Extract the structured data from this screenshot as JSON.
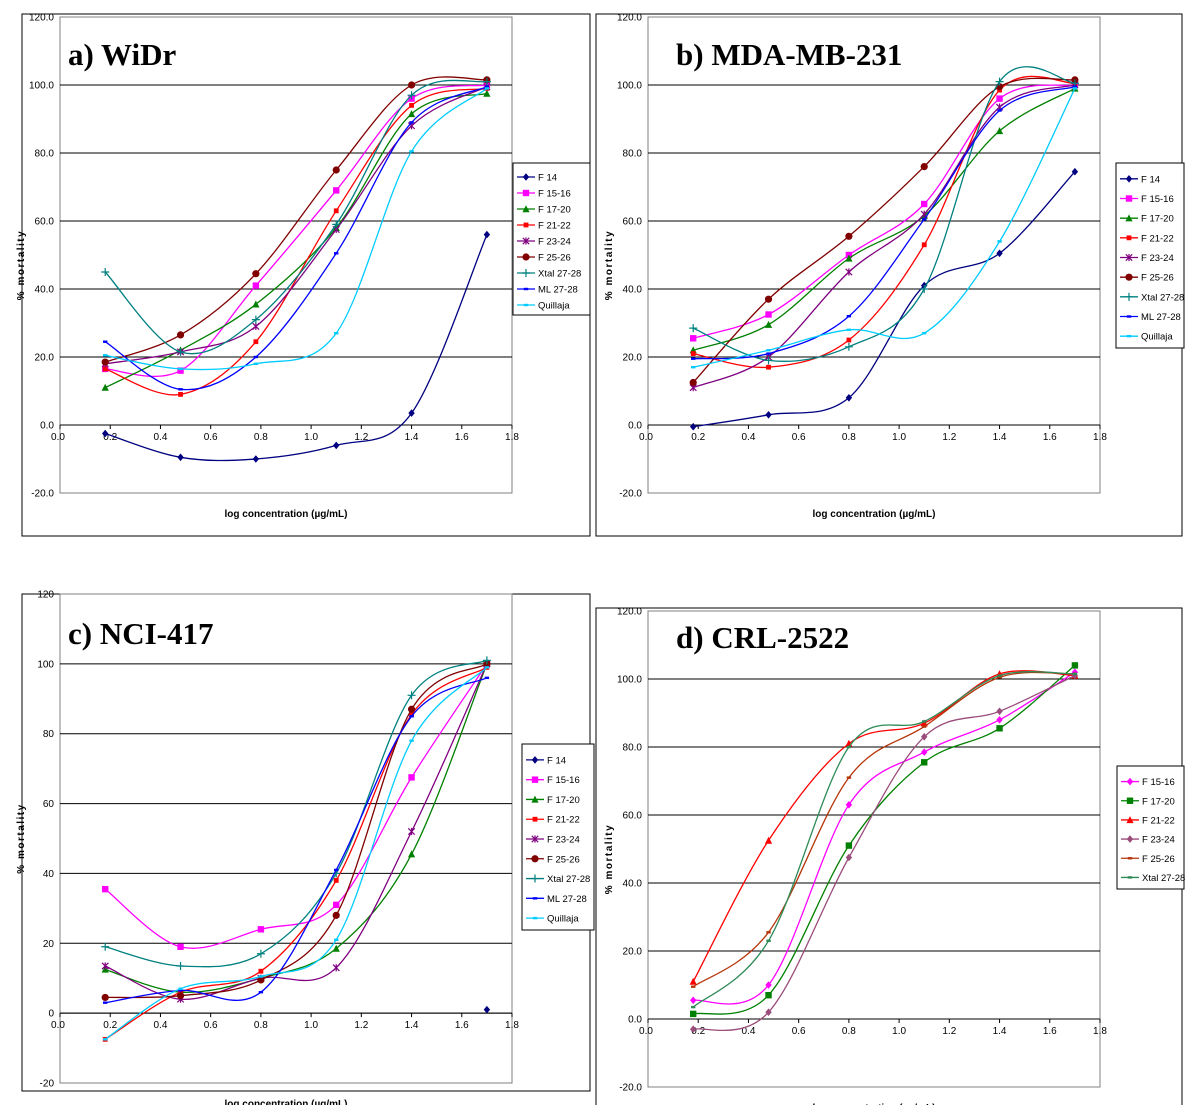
{
  "chart_data": [
    {
      "type": "line",
      "title": "a) WiDr",
      "xlabel": "log concentration (µg/mL)",
      "ylabel": "% mortality",
      "xlim": [
        0.0,
        1.8
      ],
      "ylim": [
        -20,
        120
      ],
      "xticks": [
        "0.0",
        "0.2",
        "0.4",
        "0.6",
        "0.8",
        "1.0",
        "1.2",
        "1.4",
        "1.6",
        "1.8"
      ],
      "yticks": [
        "-20.0",
        "0.0",
        "20.0",
        "40.0",
        "60.0",
        "80.0",
        "100.0",
        "120.0"
      ],
      "grid": "horizontal",
      "legend": "right",
      "x": [
        0.18,
        0.48,
        0.78,
        1.1,
        1.4,
        1.7
      ],
      "series": [
        {
          "name": "F 14",
          "color": "#000080",
          "marker": "diamond",
          "values": [
            -2.5,
            -9.5,
            -10,
            -6,
            3.5,
            56
          ]
        },
        {
          "name": "F 15-16",
          "color": "#ff00ff",
          "marker": "square",
          "values": [
            16.5,
            16,
            41,
            69,
            96,
            100
          ]
        },
        {
          "name": "F 17-20",
          "color": "#008000",
          "marker": "triangle",
          "values": [
            11,
            22,
            35.5,
            58,
            91.5,
            97.5
          ]
        },
        {
          "name": "F 21-22",
          "color": "#ff0000",
          "marker": "square-small",
          "values": [
            16.5,
            9,
            24.5,
            63,
            94,
            99
          ]
        },
        {
          "name": "F 23-24",
          "color": "#800080",
          "marker": "x",
          "values": [
            18,
            21.5,
            29,
            57.5,
            88,
            99.5
          ]
        },
        {
          "name": "F 25-26",
          "color": "#800000",
          "marker": "circle",
          "values": [
            18.5,
            26.5,
            44.5,
            75,
            100,
            101.5
          ]
        },
        {
          "name": "Xtal 27-28",
          "color": "#008080",
          "marker": "plus",
          "values": [
            45,
            21.5,
            31,
            59,
            97,
            101
          ]
        },
        {
          "name": "ML 27-28",
          "color": "#0000ff",
          "marker": "dash",
          "values": [
            24.5,
            10.5,
            20,
            50.5,
            89,
            99.5
          ]
        },
        {
          "name": "Quillaja",
          "color": "#00ccff",
          "marker": "dash",
          "values": [
            20.5,
            16.5,
            18,
            27,
            80.5,
            99
          ]
        }
      ]
    },
    {
      "type": "line",
      "title": "b) MDA-MB-231",
      "xlabel": "log concentration (µg/mL)",
      "ylabel": "% mortality",
      "xlim": [
        0.0,
        1.8
      ],
      "ylim": [
        -20,
        120
      ],
      "xticks": [
        "0.0",
        "0.2",
        "0.4",
        "0.6",
        "0.8",
        "1.0",
        "1.2",
        "1.4",
        "1.6",
        "1.8"
      ],
      "yticks": [
        "-20.0",
        "0.0",
        "20.0",
        "40.0",
        "60.0",
        "80.0",
        "100.0",
        "120.0"
      ],
      "grid": "horizontal",
      "legend": "right",
      "x": [
        0.18,
        0.48,
        0.8,
        1.1,
        1.4,
        1.7
      ],
      "series": [
        {
          "name": "F 14",
          "color": "#000080",
          "marker": "diamond",
          "values": [
            -0.5,
            3,
            8,
            41,
            50.5,
            74.5
          ]
        },
        {
          "name": "F 15-16",
          "color": "#ff00ff",
          "marker": "square",
          "values": [
            25.5,
            32.5,
            50,
            65,
            96,
            100
          ]
        },
        {
          "name": "F 17-20",
          "color": "#008000",
          "marker": "triangle",
          "values": [
            22,
            29.5,
            49,
            61.5,
            86.5,
            99
          ]
        },
        {
          "name": "F 21-22",
          "color": "#ff0000",
          "marker": "square-small",
          "values": [
            21,
            17,
            25,
            53,
            98.5,
            100.5
          ]
        },
        {
          "name": "F 23-24",
          "color": "#800080",
          "marker": "x",
          "values": [
            11,
            20,
            45,
            62,
            93.5,
            100
          ]
        },
        {
          "name": "F 25-26",
          "color": "#800000",
          "marker": "circle",
          "values": [
            12.5,
            37,
            55.5,
            76,
            99.5,
            101.5
          ]
        },
        {
          "name": "Xtal 27-28",
          "color": "#008080",
          "marker": "plus",
          "values": [
            28.5,
            19,
            23,
            40,
            101,
            100.5
          ]
        },
        {
          "name": "ML 27-28",
          "color": "#0000ff",
          "marker": "dash",
          "values": [
            19.5,
            21,
            32,
            60.5,
            92.5,
            99.5
          ]
        },
        {
          "name": "Quillaja",
          "color": "#00ccff",
          "marker": "dash",
          "values": [
            17,
            22,
            28,
            27,
            54,
            99
          ]
        }
      ]
    },
    {
      "type": "line",
      "title": "c) NCI-417",
      "xlabel": "log concentration (µg/mL)",
      "ylabel": "% mortality",
      "xlim": [
        0.0,
        1.8
      ],
      "ylim": [
        -20,
        120
      ],
      "xticks": [
        "0.0",
        "0.2",
        "0.4",
        "0.6",
        "0.8",
        "1.0",
        "1.2",
        "1.4",
        "1.6",
        "1.8"
      ],
      "yticks": [
        "-20",
        "0",
        "20",
        "40",
        "60",
        "80",
        "100",
        "120"
      ],
      "grid": "horizontal",
      "legend": "right",
      "x": [
        0.18,
        0.48,
        0.8,
        1.1,
        1.4,
        1.7
      ],
      "series": [
        {
          "name": "F 14",
          "color": "#000080",
          "marker": "diamond",
          "values": [
            null,
            null,
            null,
            null,
            null,
            1
          ]
        },
        {
          "name": "F 15-16",
          "color": "#ff00ff",
          "marker": "square",
          "values": [
            35.5,
            19,
            24,
            31,
            67.5,
            100
          ]
        },
        {
          "name": "F 17-20",
          "color": "#008000",
          "marker": "triangle",
          "values": [
            12.5,
            6,
            10,
            18.5,
            45.5,
            100
          ]
        },
        {
          "name": "F 21-22",
          "color": "#ff0000",
          "marker": "square-small",
          "values": [
            -7.5,
            6,
            12,
            38,
            85.5,
            99
          ]
        },
        {
          "name": "F 23-24",
          "color": "#800080",
          "marker": "x",
          "values": [
            13.5,
            4,
            10,
            13,
            52,
            100
          ]
        },
        {
          "name": "F 25-26",
          "color": "#800000",
          "marker": "circle",
          "values": [
            4.5,
            5,
            9.5,
            28,
            87,
            100
          ]
        },
        {
          "name": "Xtal 27-28",
          "color": "#008080",
          "marker": "plus",
          "values": [
            19,
            13.5,
            17,
            40,
            91,
            101
          ]
        },
        {
          "name": "ML 27-28",
          "color": "#0000ff",
          "marker": "dash",
          "values": [
            3,
            6.5,
            6,
            41,
            85,
            96
          ]
        },
        {
          "name": "Quillaja",
          "color": "#00ccff",
          "marker": "dash",
          "values": [
            -7.5,
            7,
            10.5,
            21,
            78,
            99
          ]
        }
      ]
    },
    {
      "type": "line",
      "title": "d) CRL-2522",
      "xlabel": "log concentration (µg/mL)",
      "ylabel": "% mortality",
      "xlim": [
        0.0,
        1.8
      ],
      "ylim": [
        -20,
        120
      ],
      "xticks": [
        "0.0",
        "0.2",
        "0.4",
        "0.6",
        "0.8",
        "1.0",
        "1.2",
        "1.4",
        "1.6",
        "1.8"
      ],
      "yticks": [
        "-20.0",
        "0.0",
        "20.0",
        "40.0",
        "60.0",
        "80.0",
        "100.0",
        "120.0"
      ],
      "grid": "horizontal",
      "legend": "right",
      "x": [
        0.18,
        0.48,
        0.8,
        1.1,
        1.4,
        1.7
      ],
      "series": [
        {
          "name": "F 15-16",
          "color": "#ff00ff",
          "marker": "diamond",
          "values": [
            5.5,
            10,
            63,
            78.5,
            88,
            102
          ]
        },
        {
          "name": "F 17-20",
          "color": "#008000",
          "marker": "square",
          "values": [
            1.5,
            7,
            51,
            75.5,
            85.5,
            104
          ]
        },
        {
          "name": "F 21-22",
          "color": "#ff0000",
          "marker": "triangle",
          "values": [
            11,
            52.5,
            81,
            87,
            101.5,
            101
          ]
        },
        {
          "name": "F 23-24",
          "color": "#9a4c7a",
          "marker": "diamond",
          "values": [
            -3,
            2,
            47.5,
            83,
            90.5,
            101
          ]
        },
        {
          "name": "F 25-26",
          "color": "#b5350a",
          "marker": "dash",
          "values": [
            9.5,
            25.5,
            71,
            86,
            100.5,
            101.5
          ]
        },
        {
          "name": "Xtal 27-28",
          "color": "#2e8b57",
          "marker": "dash",
          "values": [
            3.5,
            23,
            80,
            87.5,
            101,
            101.5
          ]
        }
      ]
    }
  ]
}
